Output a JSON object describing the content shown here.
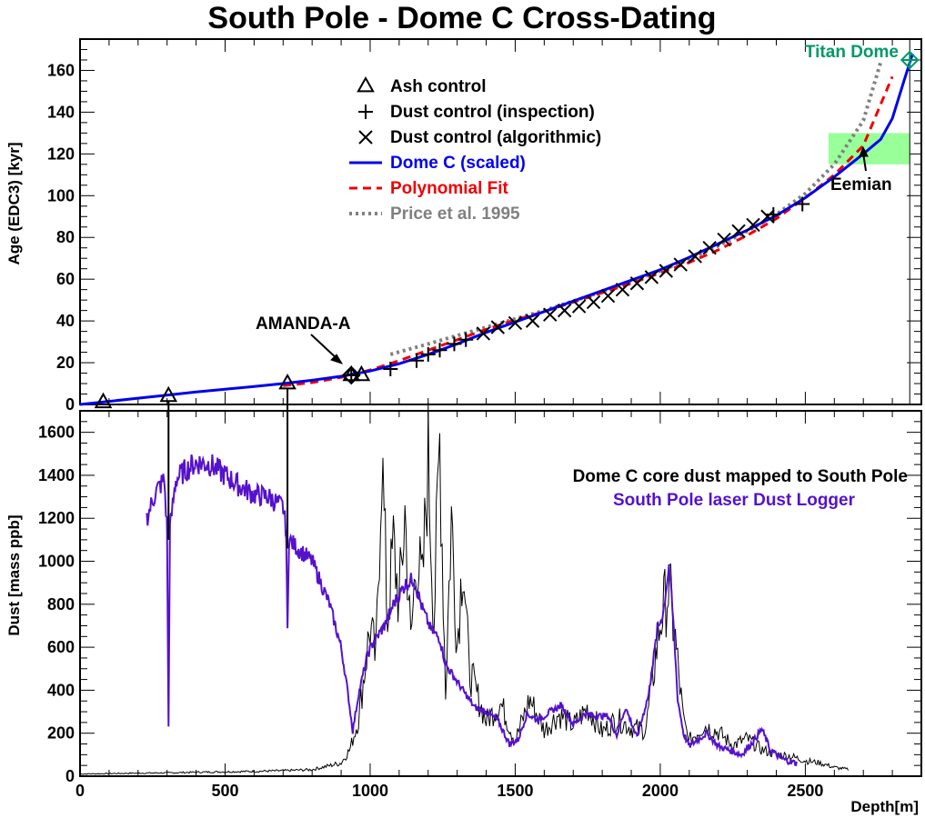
{
  "chart_data": [
    {
      "type": "line",
      "title": "South Pole - Dome C Cross-Dating",
      "ylabel": "Age (EDC3) [kyr]",
      "xlim": [
        0,
        2900
      ],
      "ylim": [
        0,
        175
      ],
      "x_ticks": [
        0,
        500,
        1000,
        1500,
        2000,
        2500
      ],
      "y_ticks": [
        0,
        20,
        40,
        60,
        80,
        100,
        120,
        140,
        160
      ],
      "grid": false,
      "legend": "top-center",
      "colors": {
        "dome_c": "#0000ee",
        "poly": "#ee0000",
        "price": "#808080",
        "titan": "#009966",
        "eemian_band": "#99ff99"
      },
      "legend_entries": [
        {
          "key": "ash",
          "label": "Ash control"
        },
        {
          "key": "dust_insp",
          "label": "Dust control (inspection)"
        },
        {
          "key": "dust_algo",
          "label": "Dust control (algorithmic)"
        },
        {
          "key": "dome_c",
          "label": "Dome C (scaled)"
        },
        {
          "key": "poly",
          "label": "Polynomial Fit"
        },
        {
          "key": "price",
          "label": "Price et al. 1995"
        }
      ],
      "annotations": {
        "amanda": "AMANDA-A",
        "eemian": "Eemian",
        "titan": "Titan Dome"
      },
      "eemian_band": {
        "x": [
          2580,
          2860
        ],
        "y": [
          115,
          130
        ]
      },
      "ash_control": [
        {
          "x": 80,
          "y": 1
        },
        {
          "x": 305,
          "y": 4
        },
        {
          "x": 715,
          "y": 10
        },
        {
          "x": 935,
          "y": 14
        },
        {
          "x": 970,
          "y": 14
        }
      ],
      "dust_inspection": [
        {
          "x": 1070,
          "y": 17
        },
        {
          "x": 1160,
          "y": 21
        },
        {
          "x": 1200,
          "y": 24
        },
        {
          "x": 1240,
          "y": 26
        },
        {
          "x": 1290,
          "y": 29
        },
        {
          "x": 1330,
          "y": 31
        },
        {
          "x": 2390,
          "y": 91
        },
        {
          "x": 2490,
          "y": 96
        }
      ],
      "dust_algorithmic": [
        {
          "x": 1390,
          "y": 34
        },
        {
          "x": 1440,
          "y": 37
        },
        {
          "x": 1500,
          "y": 39
        },
        {
          "x": 1560,
          "y": 40
        },
        {
          "x": 1620,
          "y": 43
        },
        {
          "x": 1670,
          "y": 45
        },
        {
          "x": 1720,
          "y": 47
        },
        {
          "x": 1770,
          "y": 49
        },
        {
          "x": 1820,
          "y": 52
        },
        {
          "x": 1870,
          "y": 55
        },
        {
          "x": 1920,
          "y": 58
        },
        {
          "x": 1970,
          "y": 61
        },
        {
          "x": 2020,
          "y": 64
        },
        {
          "x": 2070,
          "y": 67
        },
        {
          "x": 2120,
          "y": 71
        },
        {
          "x": 2170,
          "y": 75
        },
        {
          "x": 2220,
          "y": 79
        },
        {
          "x": 2270,
          "y": 83
        },
        {
          "x": 2320,
          "y": 86
        },
        {
          "x": 2370,
          "y": 90
        }
      ],
      "amanda_point": {
        "x": 935,
        "y": 14
      },
      "titan_point": {
        "x": 2860,
        "y": 165
      },
      "series": [
        {
          "key": "dome_c",
          "x": [
            0,
            100,
            200,
            300,
            400,
            500,
            600,
            700,
            800,
            900,
            1000,
            1100,
            1200,
            1300,
            1400,
            1500,
            1600,
            1700,
            1800,
            1900,
            2000,
            2100,
            2200,
            2300,
            2400,
            2500,
            2600,
            2700,
            2760,
            2800,
            2840,
            2870
          ],
          "y": [
            0,
            1.5,
            3,
            4.5,
            6,
            7.3,
            8.6,
            10,
            11.6,
            13.5,
            16,
            19.5,
            24,
            29,
            34.5,
            39.5,
            44.5,
            49.5,
            54.5,
            59.5,
            64.5,
            70.5,
            77,
            83.5,
            90.5,
            99,
            109,
            120,
            127,
            137,
            155,
            168
          ]
        },
        {
          "key": "poly",
          "x": [
            700,
            800,
            900,
            1000,
            1100,
            1200,
            1300,
            1400,
            1500,
            1600,
            1700,
            1800,
            1900,
            2000,
            2100,
            2200,
            2300,
            2400,
            2500,
            2600,
            2700,
            2800
          ],
          "y": [
            9,
            10.5,
            13,
            16.5,
            21,
            26,
            31,
            36,
            40.5,
            44.5,
            49,
            53.5,
            58,
            63,
            68,
            74,
            81,
            89,
            99,
            110,
            124,
            157
          ]
        },
        {
          "key": "price",
          "x": [
            1070,
            1200,
            1300,
            1400,
            1500,
            1600,
            1700,
            1800,
            1900,
            2000,
            2100,
            2200,
            2300,
            2400,
            2500,
            2600,
            2700,
            2760
          ],
          "y": [
            24,
            29,
            33,
            37,
            41,
            45,
            49.5,
            54,
            59,
            64,
            69.5,
            76,
            83,
            91,
            101,
            115,
            136,
            164
          ]
        }
      ]
    },
    {
      "type": "line",
      "xlabel": "Depth[m]",
      "ylabel": "Dust [mass ppb]",
      "xlim": [
        0,
        2900
      ],
      "ylim": [
        0,
        1700
      ],
      "x_ticks": [
        0,
        500,
        1000,
        1500,
        2000,
        2500
      ],
      "y_ticks": [
        0,
        200,
        400,
        600,
        800,
        1000,
        1200,
        1400,
        1600
      ],
      "grid": false,
      "legend": "top-right",
      "colors": {
        "logger": "#5511cc",
        "dome_c_dust": "#000000"
      },
      "legend_entries": [
        {
          "key": "dome_c_dust",
          "label": "Dome C core dust mapped to South Pole"
        },
        {
          "key": "logger",
          "label": "South Pole laser Dust Logger"
        }
      ],
      "series": [
        {
          "key": "logger",
          "x": [
            230,
            260,
            290,
            300,
            305,
            310,
            330,
            360,
            400,
            450,
            500,
            550,
            600,
            650,
            700,
            710,
            715,
            720,
            750,
            800,
            830,
            860,
            880,
            900,
            920,
            940,
            960,
            990,
            1010,
            1050,
            1080,
            1120,
            1150,
            1180,
            1210,
            1240,
            1260,
            1290,
            1330,
            1360,
            1400,
            1440,
            1480,
            1510,
            1540,
            1580,
            1620,
            1660,
            1700,
            1740,
            1780,
            1820,
            1850,
            1880,
            1920,
            1960,
            1990,
            2010,
            2030,
            2045,
            2060,
            2080,
            2100,
            2130,
            2160,
            2200,
            2240,
            2280,
            2320,
            2350,
            2380,
            2420,
            2470
          ],
          "y": [
            1200,
            1320,
            1380,
            1150,
            230,
            1150,
            1380,
            1420,
            1460,
            1450,
            1400,
            1350,
            1310,
            1300,
            1250,
            1150,
            680,
            1100,
            1060,
            1000,
            900,
            800,
            700,
            600,
            420,
            210,
            380,
            560,
            620,
            700,
            800,
            890,
            920,
            780,
            680,
            640,
            520,
            460,
            380,
            320,
            300,
            260,
            150,
            170,
            290,
            260,
            300,
            330,
            240,
            290,
            280,
            280,
            190,
            320,
            180,
            380,
            680,
            760,
            980,
            720,
            360,
            200,
            140,
            170,
            200,
            140,
            120,
            100,
            160,
            220,
            120,
            80,
            60
          ]
        },
        {
          "key": "dome_c_dust",
          "x": [
            0,
            100,
            200,
            300,
            400,
            500,
            600,
            700,
            800,
            900,
            930,
            960,
            1000,
            1020,
            1040,
            1060,
            1080,
            1100,
            1120,
            1140,
            1160,
            1180,
            1200,
            1220,
            1240,
            1260,
            1280,
            1300,
            1320,
            1340,
            1360,
            1400,
            1450,
            1500,
            1550,
            1600,
            1650,
            1700,
            1750,
            1800,
            1850,
            1900,
            1950,
            2000,
            2030,
            2050,
            2080,
            2100,
            2150,
            2200,
            2250,
            2300,
            2350,
            2400,
            2450,
            2500,
            2550,
            2600,
            2650
          ],
          "y": [
            10,
            12,
            14,
            15,
            18,
            20,
            22,
            25,
            30,
            60,
            120,
            260,
            680,
            520,
            1470,
            700,
            1050,
            780,
            1200,
            600,
            1020,
            850,
            1450,
            700,
            1530,
            380,
            1180,
            600,
            1020,
            500,
            400,
            250,
            330,
            160,
            350,
            210,
            280,
            230,
            310,
            200,
            260,
            220,
            210,
            700,
            860,
            640,
            250,
            160,
            230,
            200,
            140,
            170,
            120,
            100,
            90,
            70,
            60,
            40,
            30
          ]
        }
      ]
    }
  ]
}
